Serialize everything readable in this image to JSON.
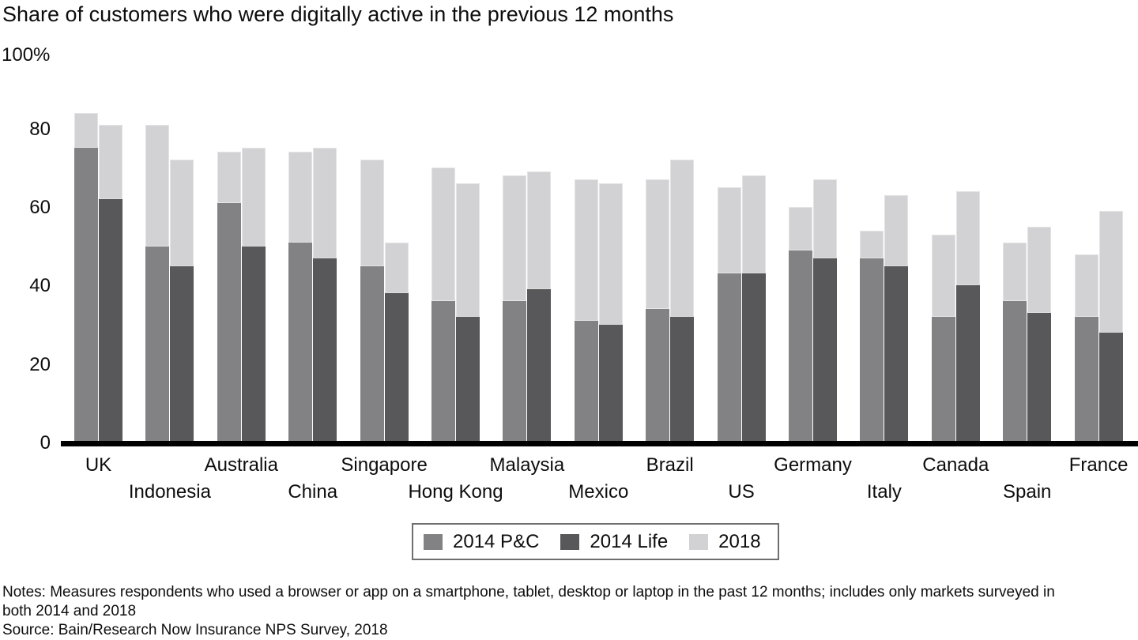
{
  "title": "Share of customers who were digitally active in the previous 12 months",
  "y_axis": {
    "top_label": "100%",
    "ticks": [
      {
        "label": "80",
        "value": 80
      },
      {
        "label": "60",
        "value": 60
      },
      {
        "label": "40",
        "value": 40
      },
      {
        "label": "20",
        "value": 20
      },
      {
        "label": "0",
        "value": 0
      }
    ]
  },
  "legend": {
    "items": [
      {
        "label": "2014 P&C",
        "color": "#828285"
      },
      {
        "label": "2014 Life",
        "color": "#58585a"
      },
      {
        "label": "2018",
        "color": "#d2d2d4"
      }
    ]
  },
  "footer": {
    "notes_line1": "Notes: Measures respondents who used a browser or app on a smartphone, tablet, desktop or laptop in the past 12 months; includes only markets surveyed in",
    "notes_line2": "both 2014 and 2018",
    "source": "Source: Bain/Research Now Insurance NPS Survey, 2018"
  },
  "colors": {
    "pc_2014": "#828285",
    "life_2014": "#58585a",
    "active_2018": "#d2d2d4",
    "axis": "#000000"
  },
  "chart_data": {
    "type": "bar",
    "title": "Share of customers who were digitally active in the previous 12 months",
    "xlabel": "",
    "ylabel": "",
    "unit": "%",
    "ylim": [
      0,
      100
    ],
    "yticks": [
      0,
      20,
      40,
      60,
      80,
      100
    ],
    "grid": false,
    "legend_position": "bottom",
    "structure": "Two stacked bars per country: left bar is P&C customers, right bar is Life customers; dark lower segment marks the 2014 share and the light cap extends the bar up to the 2018 share (bar total = 2018 value).",
    "categories": [
      "UK",
      "Indonesia",
      "Australia",
      "China",
      "Singapore",
      "Hong Kong",
      "Malaysia",
      "Mexico",
      "Brazil",
      "US",
      "Germany",
      "Italy",
      "Canada",
      "Spain",
      "France"
    ],
    "series": [
      {
        "name": "2014 P&C",
        "role": "left-bar-base",
        "values": [
          75,
          50,
          61,
          51,
          45,
          36,
          36,
          31,
          34,
          43,
          49,
          47,
          32,
          36,
          32
        ]
      },
      {
        "name": "2018 (P&C bar total)",
        "role": "left-bar-total",
        "values": [
          84,
          81,
          74,
          74,
          72,
          70,
          68,
          67,
          67,
          65,
          60,
          54,
          53,
          51,
          48
        ]
      },
      {
        "name": "2014 Life",
        "role": "right-bar-base",
        "values": [
          62,
          45,
          50,
          47,
          38,
          32,
          39,
          30,
          32,
          43,
          47,
          45,
          40,
          33,
          28
        ]
      },
      {
        "name": "2018 (Life bar total)",
        "role": "right-bar-total",
        "values": [
          81,
          72,
          75,
          75,
          51,
          66,
          69,
          66,
          72,
          68,
          67,
          63,
          64,
          55,
          59
        ]
      }
    ]
  }
}
